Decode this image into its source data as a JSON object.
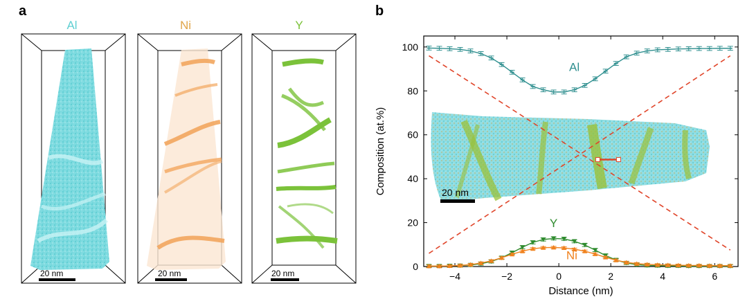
{
  "panel_a": {
    "letter": "a",
    "boxes": [
      {
        "title": "Al",
        "color": "#5fcfd2",
        "scale_label": "20 nm"
      },
      {
        "title": "Ni",
        "color": "#f2a65e",
        "scale_label": "20 nm"
      },
      {
        "title": "Y",
        "color": "#7bc23a",
        "scale_label": "20 nm"
      }
    ]
  },
  "panel_b": {
    "letter": "b",
    "inset_scale_label": "20 nm"
  },
  "chart_data": {
    "type": "line",
    "title": "",
    "xlabel": "Distance (nm)",
    "ylabel": "Composition (at.%)",
    "xlim": [
      -5.2,
      6.9
    ],
    "ylim": [
      0,
      105
    ],
    "xticks": [
      -4,
      -2,
      0,
      2,
      4,
      6
    ],
    "yticks": [
      0,
      20,
      40,
      60,
      80,
      100
    ],
    "x": [
      -5.0,
      -4.6,
      -4.2,
      -3.8,
      -3.4,
      -3.0,
      -2.6,
      -2.2,
      -1.8,
      -1.4,
      -1.0,
      -0.6,
      -0.2,
      0.2,
      0.6,
      1.0,
      1.4,
      1.8,
      2.2,
      2.6,
      3.0,
      3.4,
      3.8,
      4.2,
      4.6,
      5.0,
      5.4,
      5.8,
      6.2,
      6.6
    ],
    "series": [
      {
        "name": "Al",
        "color": "#2f8f8f",
        "values": [
          99.5,
          99.4,
          99.2,
          98.9,
          98.2,
          97.0,
          95.0,
          92.0,
          88.5,
          85.0,
          82.0,
          80.5,
          79.5,
          79.5,
          80.5,
          82.5,
          85.5,
          89.0,
          92.5,
          95.5,
          97.2,
          98.2,
          98.7,
          98.9,
          99.1,
          99.2,
          99.3,
          99.3,
          99.4,
          99.4
        ],
        "err": 0.9
      },
      {
        "name": "Y",
        "color": "#2e8b2e",
        "values": [
          0.2,
          0.2,
          0.3,
          0.4,
          0.7,
          1.3,
          2.3,
          4.0,
          6.3,
          8.8,
          11.0,
          12.3,
          12.8,
          12.6,
          11.5,
          9.8,
          7.5,
          5.0,
          3.0,
          1.6,
          0.9,
          0.5,
          0.4,
          0.3,
          0.3,
          0.2,
          0.2,
          0.2,
          0.2,
          0.2
        ],
        "err": 0.7
      },
      {
        "name": "Ni",
        "color": "#f0821e",
        "values": [
          0.2,
          0.2,
          0.3,
          0.5,
          0.9,
          1.6,
          2.6,
          4.0,
          5.6,
          7.0,
          8.1,
          8.6,
          8.7,
          8.5,
          7.9,
          7.0,
          5.7,
          4.2,
          2.9,
          1.9,
          1.3,
          1.0,
          0.8,
          0.7,
          0.6,
          0.5,
          0.5,
          0.4,
          0.4,
          0.4
        ],
        "err": 0.5
      }
    ],
    "annotations": [
      {
        "text": "Al",
        "x": 0.6,
        "y": 89,
        "color": "#2f8f8f"
      },
      {
        "text": "Y",
        "x": -0.2,
        "y": 18,
        "color": "#2e8b2e"
      },
      {
        "text": "Ni",
        "x": 0.5,
        "y": 3.3,
        "color": "#f0821e"
      }
    ],
    "guide_lines": [
      {
        "from": [
          -5.0,
          96
        ],
        "to": [
          6.6,
          7.5
        ],
        "color": "#e0452a",
        "style": "dashed"
      },
      {
        "from": [
          -5.0,
          6
        ],
        "to": [
          6.6,
          96
        ],
        "color": "#e0452a",
        "style": "dashed"
      }
    ],
    "profile_segment": {
      "from": [
        1.5,
        48.7
      ],
      "to": [
        2.3,
        48.7
      ],
      "color": "#e0452a"
    }
  }
}
